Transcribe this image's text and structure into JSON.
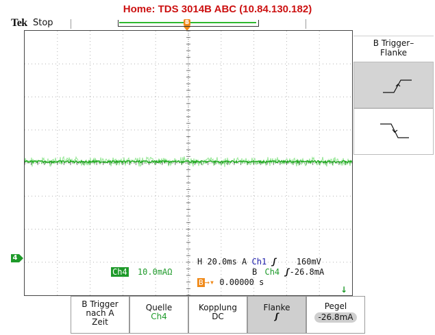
{
  "header": {
    "title": "Home:  TDS 3014B  ABC  (10.84.130.182)",
    "logo": "Tek",
    "run_status": "Stop",
    "trigger_marker_label": "B"
  },
  "channel_marker": "4",
  "readouts": {
    "ch4_label": "Ch4",
    "ch4_scale": "10.0mAΩ",
    "horizontal": "H 20.0ms",
    "a_label": "A",
    "a_source": "Ch1",
    "a_slope_icon": "rising-edge-icon",
    "a_level": "160mV",
    "b_label": "B",
    "b_source": "Ch4",
    "b_level": "-26.8mA",
    "b_trig_label": "B",
    "delay": "0.00000 s"
  },
  "side_menu": {
    "title": "B Trigger–\nFlanke",
    "options": [
      {
        "icon": "rising-edge-icon",
        "active": true
      },
      {
        "icon": "falling-edge-icon",
        "active": false
      }
    ]
  },
  "bottom_menu": [
    {
      "label": "B Trigger nach A Zeit",
      "value": ""
    },
    {
      "label": "Quelle",
      "value": "Ch4"
    },
    {
      "label": "Kopplung",
      "value": "DC"
    },
    {
      "label": "Flanke",
      "value": "ʃ"
    },
    {
      "label": "Pegel",
      "value": "-26.8mA"
    }
  ],
  "colors": {
    "title": "#cc1111",
    "trace": "#39d239",
    "channel4": "#1e9a2a",
    "channel1": "#1a1aa8",
    "trigger_marker": "#f08a1a"
  }
}
